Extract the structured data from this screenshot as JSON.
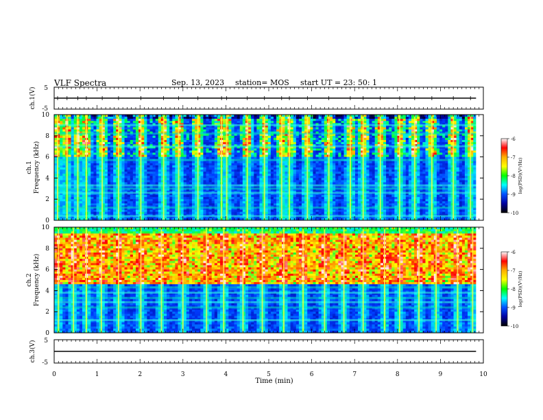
{
  "header": {
    "title": "VLF Spectra",
    "date": "Sep. 13, 2023",
    "station": "station= MOS",
    "start_ut": "start  UT =   23: 50: 1"
  },
  "colorbar": {
    "label": "log(PSD)(V²/Hz)",
    "ticks": [
      "-6",
      "-7",
      "-8",
      "-9",
      "-10"
    ],
    "colors": [
      "#ffffff",
      "#ff0000",
      "#ffb000",
      "#ffff00",
      "#00ff00",
      "#00ffff",
      "#0050ff",
      "#0000a0",
      "#000000"
    ]
  },
  "chart_data": [
    {
      "type": "line",
      "panel": "ch1-voltage",
      "ylabel": "ch.1(V)",
      "ylim": [
        -5,
        5
      ],
      "yticks": [
        "5",
        "-5"
      ],
      "trace_value": 0
    },
    {
      "type": "heatmap",
      "panel": "ch1-spectrogram",
      "ylabel_top": "ch.1",
      "ylabel": "Frequency (kHz)",
      "ylim": [
        0,
        10
      ],
      "yticks": [
        "10",
        "8",
        "6",
        "4",
        "2",
        "0"
      ],
      "zlim": [
        -10,
        -6
      ],
      "sferic_times_min": [
        0.08,
        0.3,
        0.55,
        0.75,
        1.12,
        1.5,
        2.02,
        2.55,
        2.9,
        3.35,
        3.9,
        4.02,
        4.5,
        4.9,
        5.3,
        5.48,
        5.9,
        6.4,
        6.9,
        7.2,
        7.6,
        8.05,
        8.4,
        8.8,
        9.3,
        9.7
      ],
      "bands_khz": [
        0.4,
        1.2,
        2.6,
        3.0,
        3.3,
        5.7,
        7.0,
        8.2,
        9.0
      ]
    },
    {
      "type": "heatmap",
      "panel": "ch2-spectrogram",
      "ylabel_top": "ch.2",
      "ylabel": "Frequency (kHz)",
      "ylim": [
        0,
        10
      ],
      "yticks": [
        "10",
        "8",
        "6",
        "4",
        "2",
        "0"
      ],
      "zlim": [
        -10,
        -6
      ],
      "sferic_times_min": [
        0.1,
        0.45,
        0.75,
        1.1,
        1.5,
        2.02,
        2.5,
        3.0,
        3.55,
        3.95,
        4.4,
        4.85,
        5.35,
        5.8,
        6.3,
        6.75,
        7.2,
        7.7,
        8.05,
        8.5,
        8.9,
        9.4,
        9.75
      ],
      "bands_khz": [
        1.2,
        2.4,
        2.9,
        3.3,
        3.8,
        4.3
      ]
    },
    {
      "type": "line",
      "panel": "ch3-voltage",
      "ylabel": "ch.3(V)",
      "ylim": [
        -5,
        5
      ],
      "yticks": [
        "5",
        "-5"
      ],
      "trace_value": 0
    }
  ],
  "xaxis": {
    "label": "Time (min)",
    "range": [
      0,
      10
    ],
    "ticks": [
      "0",
      "1",
      "2",
      "3",
      "4",
      "5",
      "6",
      "7",
      "8",
      "9",
      "10"
    ],
    "data_end_min": 9.83
  }
}
